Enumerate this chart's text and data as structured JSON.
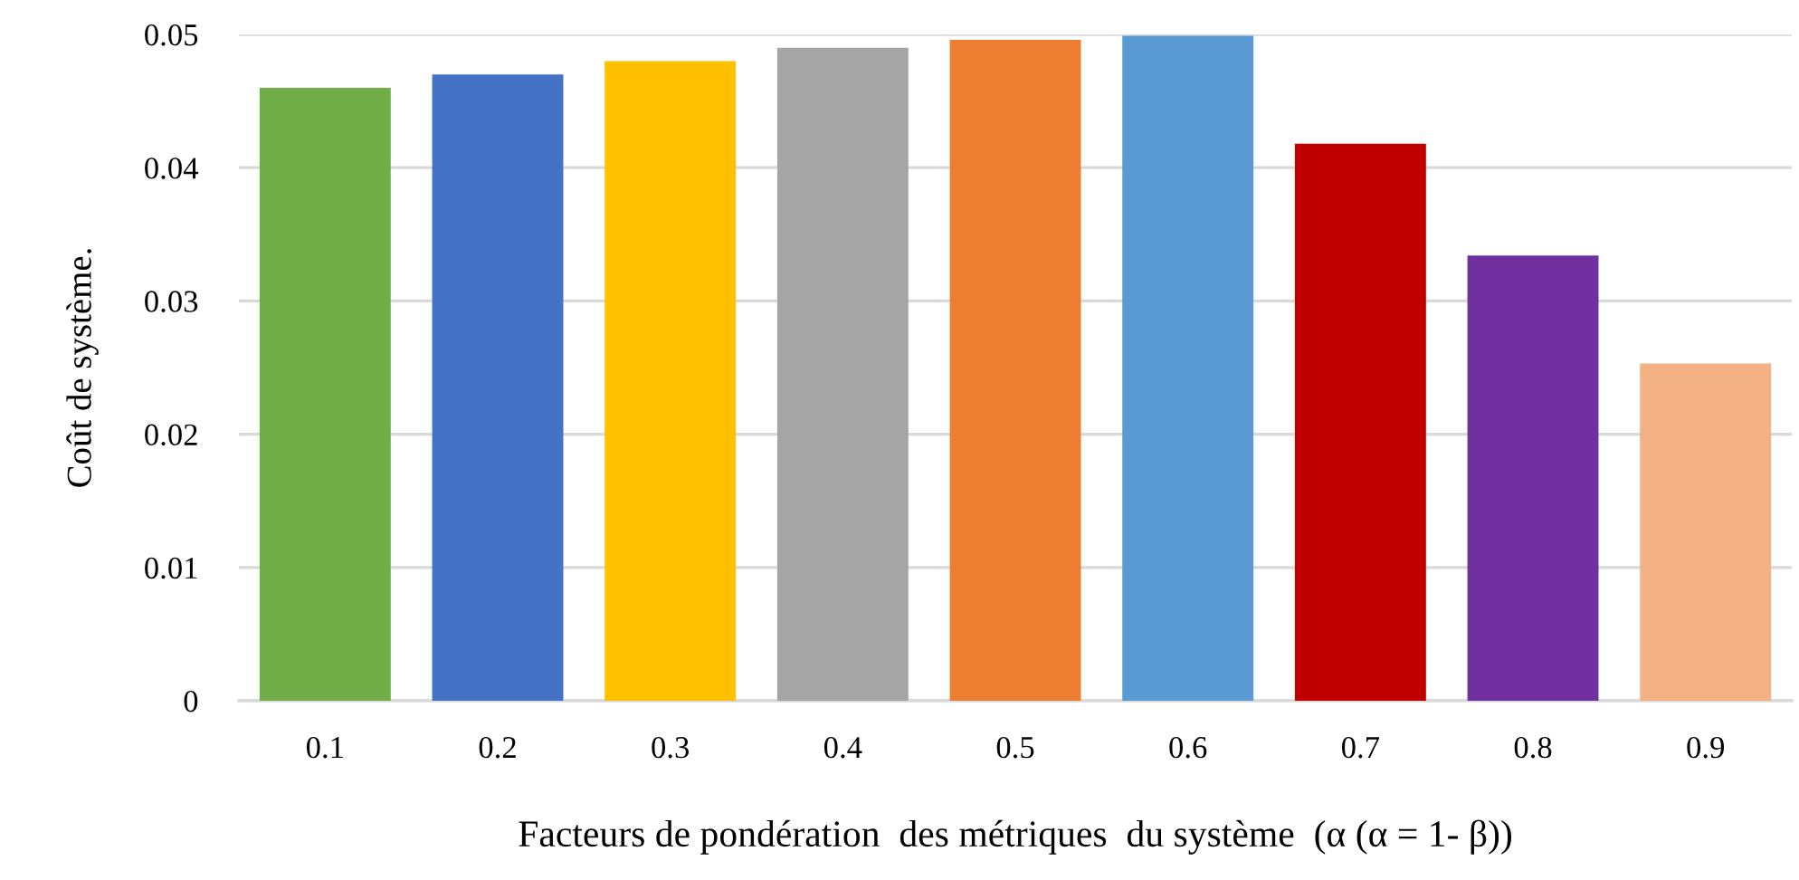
{
  "chart_data": {
    "type": "bar",
    "xlabel": "Facteurs de pondération  des métriques  du système  (α (α = 1- β))",
    "ylabel": "Coût de système.",
    "categories": [
      "0.1",
      "0.2",
      "0.3",
      "0.4",
      "0.5",
      "0.6",
      "0.7",
      "0.8",
      "0.9"
    ],
    "values": [
      0.046,
      0.047,
      0.048,
      0.049,
      0.0496,
      0.0499,
      0.0418,
      0.0334,
      0.0253
    ],
    "colors": [
      "#70ad47",
      "#4472c4",
      "#ffc000",
      "#a5a5a5",
      "#ed7d31",
      "#5b9bd5",
      "#c00000",
      "#7030a0",
      "#f4b183"
    ],
    "ylim": [
      0,
      0.05
    ],
    "yticks": [
      0,
      0.01,
      0.02,
      0.03,
      0.04,
      0.05
    ],
    "grid": "y"
  }
}
